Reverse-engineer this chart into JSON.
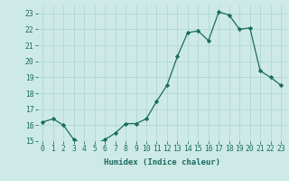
{
  "x": [
    0,
    1,
    2,
    3,
    4,
    5,
    6,
    7,
    8,
    9,
    10,
    11,
    12,
    13,
    14,
    15,
    16,
    17,
    18,
    19,
    20,
    21,
    22,
    23
  ],
  "y": [
    16.2,
    16.4,
    16.0,
    15.1,
    14.8,
    14.8,
    15.1,
    15.5,
    16.1,
    16.1,
    16.4,
    17.5,
    18.5,
    20.3,
    21.8,
    21.9,
    21.3,
    23.1,
    22.9,
    22.0,
    22.1,
    19.4,
    19.0,
    18.5
  ],
  "line_color": "#1a6b62",
  "marker": "D",
  "marker_size": 2.2,
  "bg_color": "#ceeae6",
  "grid_color": "#b0d8d4",
  "xlabel": "Humidex (Indice chaleur)",
  "ylim": [
    15,
    23.5
  ],
  "xlim": [
    -0.5,
    23.5
  ],
  "yticks": [
    15,
    16,
    17,
    18,
    19,
    20,
    21,
    22,
    23
  ],
  "xticks": [
    0,
    1,
    2,
    3,
    4,
    5,
    6,
    7,
    8,
    9,
    10,
    11,
    12,
    13,
    14,
    15,
    16,
    17,
    18,
    19,
    20,
    21,
    22,
    23
  ],
  "tick_color": "#1a6b62",
  "label_fontsize": 6.5,
  "tick_fontsize": 5.8
}
